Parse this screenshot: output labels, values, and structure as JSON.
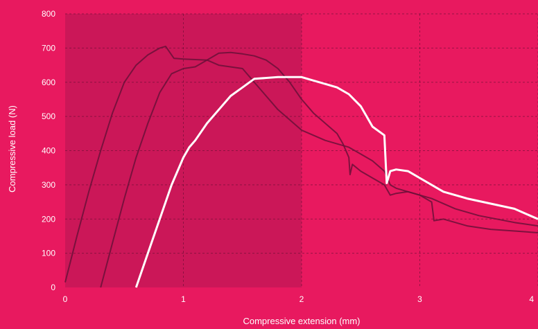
{
  "chart_data": {
    "type": "line",
    "xlabel": "Compressive extension (mm)",
    "ylabel": "Compressive load (N)",
    "xlim": [
      0,
      4
    ],
    "ylim": [
      0,
      800
    ],
    "x_ticks": [
      0,
      1,
      2,
      3,
      4
    ],
    "y_ticks": [
      0,
      100,
      200,
      300,
      400,
      500,
      600,
      700,
      800
    ],
    "grid": true,
    "colors": {
      "background": "#e8195f",
      "plot_area": "#c31756",
      "dark_series": "#6b1038",
      "highlight_series": "#ffffff",
      "text": "#ffffff"
    },
    "series": [
      {
        "style": "dark",
        "x": [
          0,
          0.1,
          0.2,
          0.3,
          0.4,
          0.5,
          0.6,
          0.7,
          0.8,
          0.85,
          0.88,
          0.92,
          1.0,
          1.2,
          1.3,
          1.5,
          1.6,
          1.8,
          2.0,
          2.2,
          2.4,
          2.5,
          2.6,
          2.7,
          2.75,
          2.8,
          2.9,
          3.1,
          3.3,
          3.5,
          3.8,
          4.0
        ],
        "y": [
          15,
          150,
          280,
          400,
          510,
          600,
          650,
          680,
          700,
          705,
          690,
          670,
          668,
          665,
          650,
          640,
          600,
          520,
          460,
          430,
          410,
          390,
          370,
          340,
          300,
          290,
          280,
          260,
          230,
          210,
          190,
          180
        ]
      },
      {
        "style": "dark",
        "x": [
          0.3,
          0.4,
          0.5,
          0.6,
          0.7,
          0.8,
          0.9,
          1.0,
          1.1,
          1.2,
          1.3,
          1.4,
          1.5,
          1.6,
          1.7,
          1.8,
          1.9,
          2.0,
          2.1,
          2.2,
          2.3,
          2.35,
          2.4,
          2.41,
          2.43,
          2.5,
          2.6,
          2.7,
          2.75,
          2.8,
          2.9,
          3.0,
          3.1,
          3.12,
          3.2,
          3.4,
          3.6,
          3.8,
          4.0
        ],
        "y": [
          0,
          130,
          260,
          380,
          480,
          570,
          625,
          640,
          645,
          665,
          685,
          687,
          683,
          677,
          665,
          640,
          600,
          550,
          510,
          480,
          450,
          420,
          380,
          330,
          360,
          340,
          320,
          300,
          270,
          275,
          280,
          270,
          250,
          195,
          200,
          180,
          170,
          165,
          160
        ]
      },
      {
        "style": "highlight",
        "x": [
          0.6,
          0.7,
          0.8,
          0.9,
          1.0,
          1.05,
          1.1,
          1.2,
          1.3,
          1.4,
          1.5,
          1.6,
          1.8,
          2.0,
          2.1,
          2.2,
          2.3,
          2.4,
          2.5,
          2.6,
          2.7,
          2.72,
          2.75,
          2.8,
          2.9,
          3.0,
          3.2,
          3.4,
          3.6,
          3.8,
          4.0
        ],
        "y": [
          0,
          100,
          200,
          300,
          380,
          410,
          430,
          480,
          520,
          560,
          585,
          610,
          615,
          615,
          605,
          595,
          585,
          565,
          530,
          470,
          445,
          305,
          340,
          345,
          340,
          320,
          280,
          260,
          245,
          230,
          200
        ]
      }
    ]
  }
}
